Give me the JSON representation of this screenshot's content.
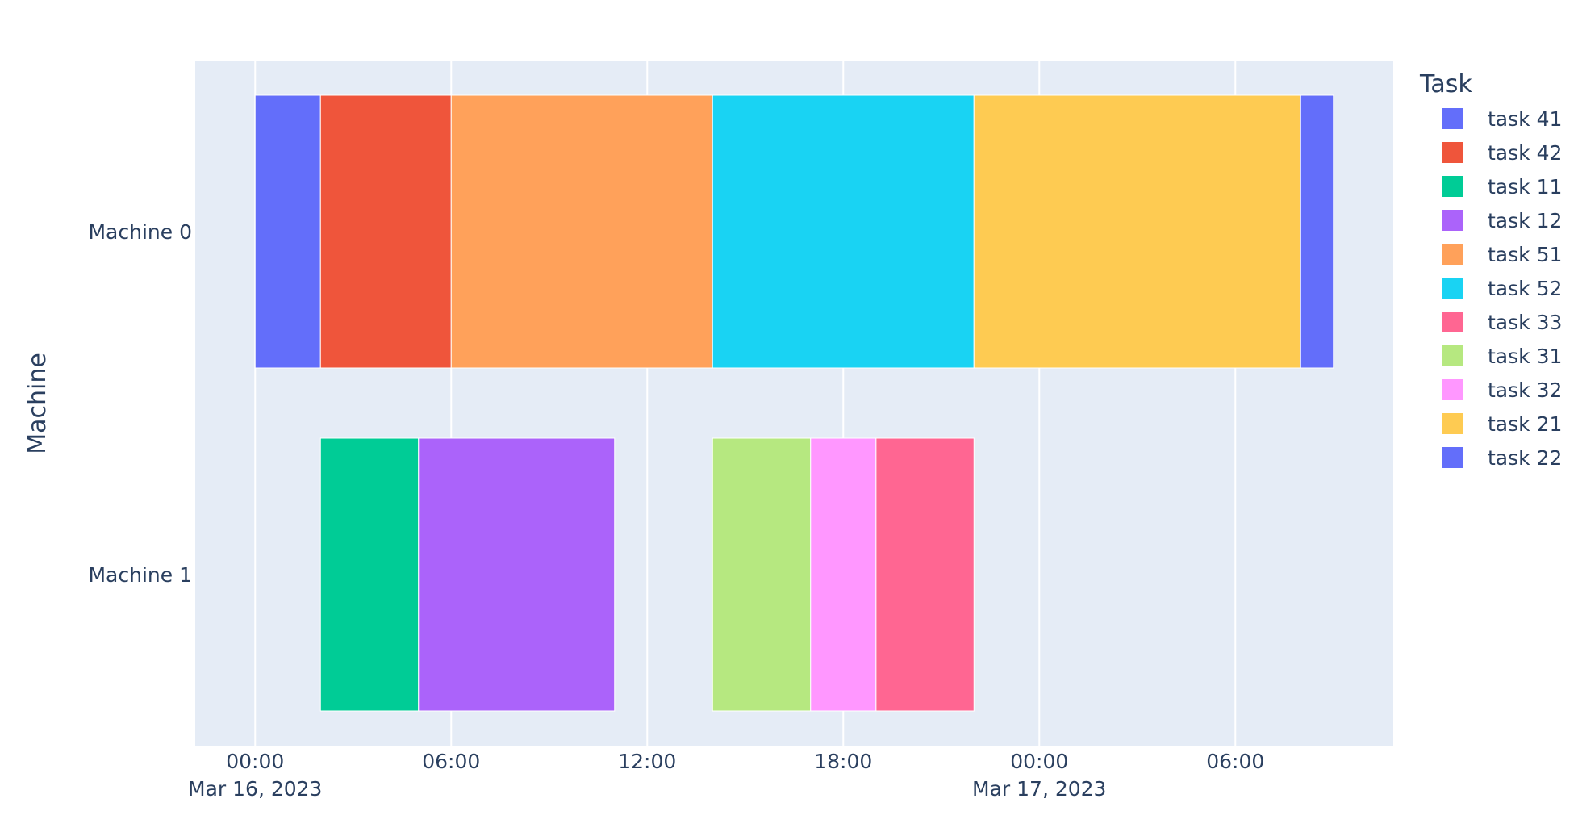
{
  "chart_data": {
    "type": "bar",
    "orientation": "horizontal",
    "ylabel": "Machine",
    "xlabel": "",
    "categories": [
      "Machine 0",
      "Machine 1"
    ],
    "x_axis": {
      "type": "date",
      "range": [
        "2023-03-15T22:10",
        "2023-03-17T10:50"
      ],
      "ticks": [
        {
          "value": "2023-03-16T00:00",
          "label": "00:00",
          "sublabel": "Mar 16, 2023"
        },
        {
          "value": "2023-03-16T06:00",
          "label": "06:00",
          "sublabel": ""
        },
        {
          "value": "2023-03-16T12:00",
          "label": "12:00",
          "sublabel": ""
        },
        {
          "value": "2023-03-16T18:00",
          "label": "18:00",
          "sublabel": ""
        },
        {
          "value": "2023-03-17T00:00",
          "label": "00:00",
          "sublabel": "Mar 17, 2023"
        },
        {
          "value": "2023-03-17T06:00",
          "label": "06:00",
          "sublabel": ""
        }
      ]
    },
    "grid": true,
    "legend": {
      "title": "Task",
      "placement": "right"
    },
    "series": [
      {
        "name": "task 41",
        "color": "#636efa",
        "bars": [
          {
            "machine": "Machine 0",
            "start": "2023-03-16T00:00",
            "end": "2023-03-16T02:00"
          }
        ]
      },
      {
        "name": "task 42",
        "color": "#EF553B",
        "bars": [
          {
            "machine": "Machine 0",
            "start": "2023-03-16T02:00",
            "end": "2023-03-16T06:00"
          }
        ]
      },
      {
        "name": "task 11",
        "color": "#00cc96",
        "bars": [
          {
            "machine": "Machine 1",
            "start": "2023-03-16T02:00",
            "end": "2023-03-16T05:00"
          }
        ]
      },
      {
        "name": "task 12",
        "color": "#ab63fa",
        "bars": [
          {
            "machine": "Machine 1",
            "start": "2023-03-16T05:00",
            "end": "2023-03-16T11:00"
          }
        ]
      },
      {
        "name": "task 51",
        "color": "#FFA15A",
        "bars": [
          {
            "machine": "Machine 0",
            "start": "2023-03-16T06:00",
            "end": "2023-03-16T14:00"
          }
        ]
      },
      {
        "name": "task 52",
        "color": "#19d3f3",
        "bars": [
          {
            "machine": "Machine 0",
            "start": "2023-03-16T14:00",
            "end": "2023-03-16T22:00"
          }
        ]
      },
      {
        "name": "task 33",
        "color": "#FF6692",
        "bars": [
          {
            "machine": "Machine 1",
            "start": "2023-03-16T19:00",
            "end": "2023-03-16T22:00"
          }
        ]
      },
      {
        "name": "task 31",
        "color": "#B6E880",
        "bars": [
          {
            "machine": "Machine 1",
            "start": "2023-03-16T14:00",
            "end": "2023-03-16T17:00"
          }
        ]
      },
      {
        "name": "task 32",
        "color": "#FF97FF",
        "bars": [
          {
            "machine": "Machine 1",
            "start": "2023-03-16T17:00",
            "end": "2023-03-16T19:00"
          }
        ]
      },
      {
        "name": "task 21",
        "color": "#FECB52",
        "bars": [
          {
            "machine": "Machine 0",
            "start": "2023-03-16T22:00",
            "end": "2023-03-17T08:00"
          }
        ]
      },
      {
        "name": "task 22",
        "color": "#636efa",
        "bars": [
          {
            "machine": "Machine 0",
            "start": "2023-03-17T08:00",
            "end": "2023-03-17T09:00"
          }
        ]
      }
    ]
  },
  "colors": {
    "plot_background": "#e5ecf6",
    "gridline": "#ffffff",
    "text": "#2a3f5f"
  }
}
